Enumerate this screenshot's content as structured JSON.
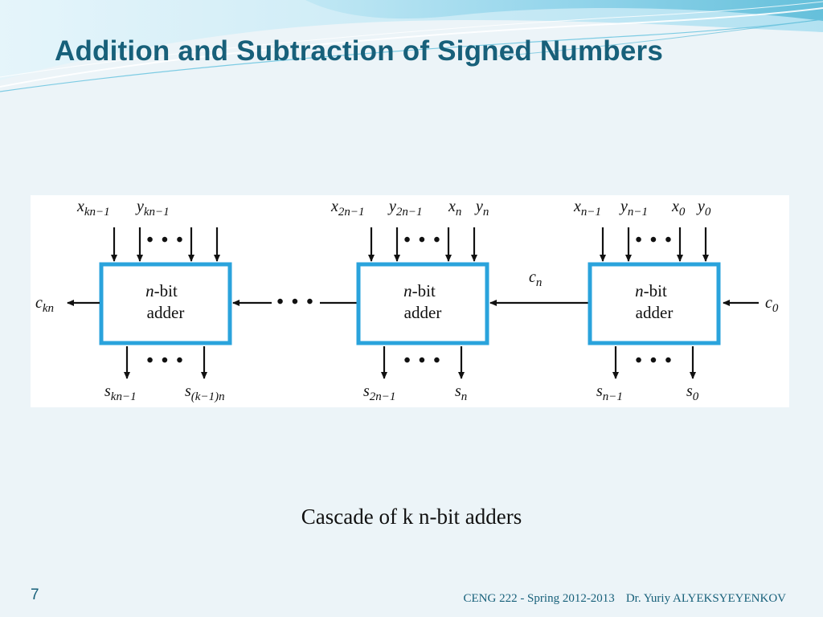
{
  "slide": {
    "title": "Addition and Subtraction of Signed Numbers",
    "caption": "Cascade of k n-bit adders",
    "slide_number": "7",
    "footer_course": "CENG 222 - Spring 2012-2013",
    "footer_author": "Dr. Yuriy ALYEKSYEYENKOV"
  },
  "theme": {
    "background": "#ecf4f8",
    "title_color": "#17607a",
    "box_stroke": "#2aa3dc",
    "wave_colors": [
      "#8fd3ea",
      "#bfe7f4",
      "#5cbcd8"
    ]
  },
  "diagram": {
    "box_label_line1": "-bit",
    "box_label_n": "n",
    "box_label_line2": "adder",
    "ellipsis": "• • •",
    "left_stage": {
      "in_x": {
        "base": "x",
        "sub": "kn−1"
      },
      "in_y": {
        "base": "y",
        "sub": "kn−1"
      },
      "carry_out": {
        "base": "c",
        "sub": "kn"
      },
      "out_s_hi": {
        "base": "s",
        "sub": "kn−1"
      },
      "out_s_lo": {
        "base": "s",
        "sub": "(k−1)n"
      }
    },
    "middle_stage": {
      "in_x_hi": {
        "base": "x",
        "sub": "2n−1"
      },
      "in_y_hi": {
        "base": "y",
        "sub": "2n−1"
      },
      "in_x_lo": {
        "base": "x",
        "sub": "n"
      },
      "in_y_lo": {
        "base": "y",
        "sub": "n"
      },
      "out_s_hi": {
        "base": "s",
        "sub": "2n−1"
      },
      "out_s_lo": {
        "base": "s",
        "sub": "n"
      }
    },
    "carry_between": {
      "base": "c",
      "sub": "n"
    },
    "right_stage": {
      "in_x_hi": {
        "base": "x",
        "sub": "n−1"
      },
      "in_y_hi": {
        "base": "y",
        "sub": "n−1"
      },
      "in_x_lo": {
        "base": "x",
        "sub": "0"
      },
      "in_y_lo": {
        "base": "y",
        "sub": "0"
      },
      "carry_in": {
        "base": "c",
        "sub": "0"
      },
      "out_s_hi": {
        "base": "s",
        "sub": "n−1"
      },
      "out_s_lo": {
        "base": "s",
        "sub": "0"
      }
    }
  }
}
